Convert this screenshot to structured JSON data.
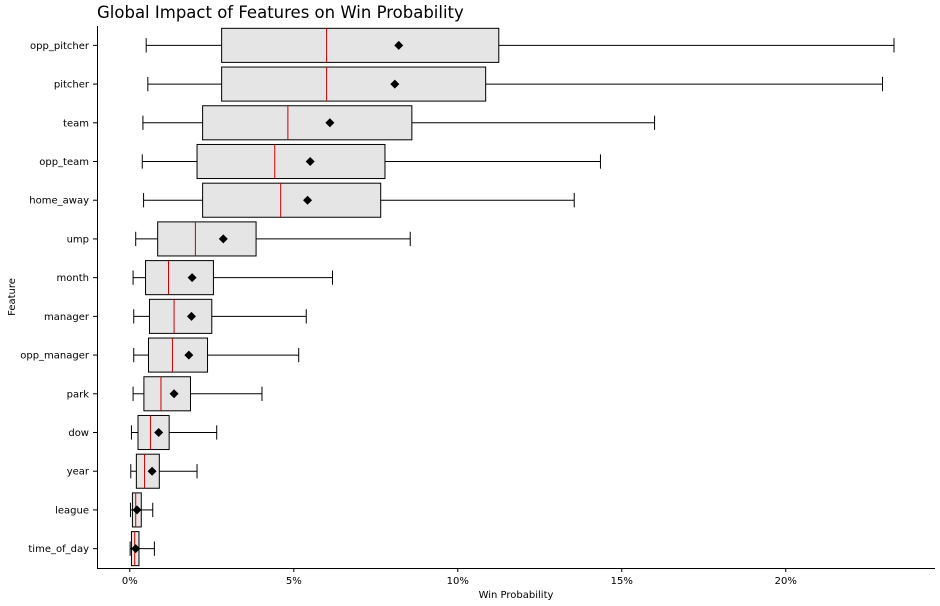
{
  "chart_data": {
    "type": "boxplot",
    "title": "Global Impact of Features on Win Probability",
    "xlabel": "Win Probability",
    "ylabel": "Feature",
    "xlim": [
      -0.01,
      0.2455
    ],
    "xticks": [
      0,
      0.05,
      0.1,
      0.15,
      0.2
    ],
    "xtick_labels": [
      "0%",
      "5%",
      "10%",
      "15%",
      "20%"
    ],
    "grid": false,
    "colors": {
      "box_fill": "#e5e5e5",
      "median": "#cc0000",
      "mean": "#000000",
      "edge": "#000000"
    },
    "categories": [
      "opp_pitcher",
      "pitcher",
      "team",
      "opp_team",
      "home_away",
      "ump",
      "month",
      "manager",
      "opp_manager",
      "park",
      "dow",
      "year",
      "league",
      "time_of_day"
    ],
    "boxes": [
      {
        "label": "opp_pitcher",
        "whislo": 0.005,
        "q1": 0.028,
        "med": 0.06,
        "q3": 0.1125,
        "whishi": 0.233,
        "mean": 0.082
      },
      {
        "label": "pitcher",
        "whislo": 0.0055,
        "q1": 0.028,
        "med": 0.06,
        "q3": 0.1085,
        "whishi": 0.2295,
        "mean": 0.0808
      },
      {
        "label": "team",
        "whislo": 0.004,
        "q1": 0.0222,
        "med": 0.0482,
        "q3": 0.086,
        "whishi": 0.16,
        "mean": 0.061
      },
      {
        "label": "opp_team",
        "whislo": 0.0038,
        "q1": 0.0205,
        "med": 0.0442,
        "q3": 0.0778,
        "whishi": 0.1435,
        "mean": 0.055
      },
      {
        "label": "home_away",
        "whislo": 0.0042,
        "q1": 0.0222,
        "med": 0.046,
        "q3": 0.0765,
        "whishi": 0.1355,
        "mean": 0.0542
      },
      {
        "label": "ump",
        "whislo": 0.0018,
        "q1": 0.0085,
        "med": 0.02,
        "q3": 0.0385,
        "whishi": 0.0855,
        "mean": 0.0285
      },
      {
        "label": "month",
        "whislo": 0.001,
        "q1": 0.0048,
        "med": 0.0118,
        "q3": 0.0255,
        "whishi": 0.0618,
        "mean": 0.019
      },
      {
        "label": "manager",
        "whislo": 0.0012,
        "q1": 0.006,
        "med": 0.0135,
        "q3": 0.025,
        "whishi": 0.0538,
        "mean": 0.0188
      },
      {
        "label": "opp_manager",
        "whislo": 0.0012,
        "q1": 0.0057,
        "med": 0.013,
        "q3": 0.0237,
        "whishi": 0.0515,
        "mean": 0.018
      },
      {
        "label": "park",
        "whislo": 0.001,
        "q1": 0.0043,
        "med": 0.0095,
        "q3": 0.0185,
        "whishi": 0.0403,
        "mean": 0.0135
      },
      {
        "label": "dow",
        "whislo": 0.0005,
        "q1": 0.0025,
        "med": 0.0063,
        "q3": 0.012,
        "whishi": 0.0265,
        "mean": 0.0088
      },
      {
        "label": "year",
        "whislo": 0.0003,
        "q1": 0.002,
        "med": 0.0045,
        "q3": 0.009,
        "whishi": 0.0205,
        "mean": 0.0068
      },
      {
        "label": "league",
        "whislo": 0.0002,
        "q1": 0.0008,
        "med": 0.0018,
        "q3": 0.0035,
        "whishi": 0.007,
        "mean": 0.0022
      },
      {
        "label": "time_of_day",
        "whislo": 0.0001,
        "q1": 0.0005,
        "med": 0.0015,
        "q3": 0.0028,
        "whishi": 0.0075,
        "mean": 0.0018
      }
    ]
  }
}
